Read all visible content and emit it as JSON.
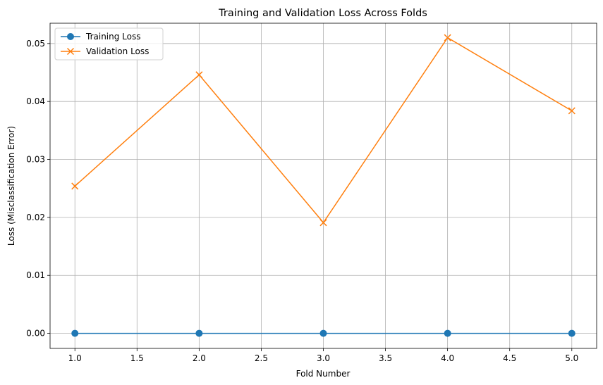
{
  "chart_data": {
    "type": "line",
    "title": "Training and Validation Loss Across Folds",
    "xlabel": "Fold Number",
    "ylabel": "Loss (Misclassification Error)",
    "xlim": [
      0.8,
      5.2
    ],
    "ylim": [
      -0.0026,
      0.0535
    ],
    "x": [
      1,
      2,
      3,
      4,
      5
    ],
    "xticks": [
      1.0,
      1.5,
      2.0,
      2.5,
      3.0,
      3.5,
      4.0,
      4.5,
      5.0
    ],
    "xtick_labels": [
      "1.0",
      "1.5",
      "2.0",
      "2.5",
      "3.0",
      "3.5",
      "4.0",
      "4.5",
      "5.0"
    ],
    "yticks": [
      0.0,
      0.01,
      0.02,
      0.03,
      0.04,
      0.05
    ],
    "ytick_labels": [
      "0.00",
      "0.01",
      "0.02",
      "0.03",
      "0.04",
      "0.05"
    ],
    "grid": true,
    "legend": "top-left",
    "series": [
      {
        "name": "Training Loss",
        "values": [
          0.0,
          0.0,
          0.0,
          0.0,
          0.0
        ],
        "color": "#1f77b4",
        "marker": "circle"
      },
      {
        "name": "Validation Loss",
        "values": [
          0.0254,
          0.0446,
          0.0191,
          0.051,
          0.0384
        ],
        "color": "#ff7f0e",
        "marker": "x"
      }
    ]
  }
}
